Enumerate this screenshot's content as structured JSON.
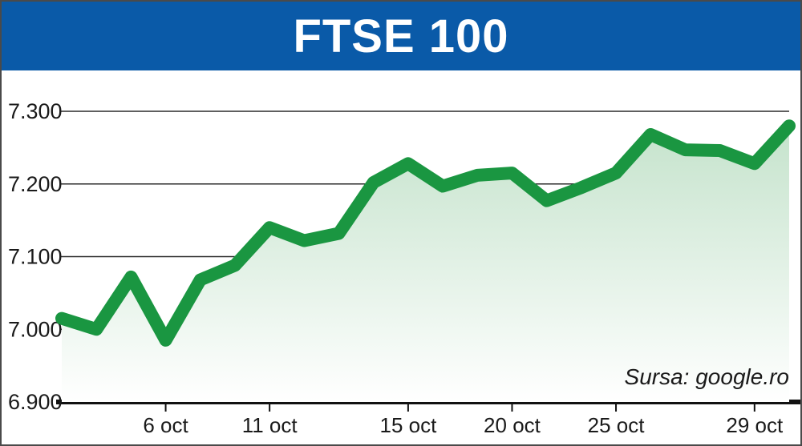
{
  "header": {
    "title": "FTSE 100"
  },
  "chart_data": {
    "type": "area",
    "title": "FTSE 100",
    "xlabel": "",
    "ylabel": "",
    "ylim": [
      6900,
      7300
    ],
    "yticks": [
      {
        "value": 6900,
        "label": "6.900"
      },
      {
        "value": 7000,
        "label": "7.000"
      },
      {
        "value": 7100,
        "label": "7.100"
      },
      {
        "value": 7200,
        "label": "7.200"
      },
      {
        "value": 7300,
        "label": "7.300"
      }
    ],
    "xticks": [
      {
        "index": 3,
        "label": "6 oct"
      },
      {
        "index": 6,
        "label": "11 oct"
      },
      {
        "index": 10,
        "label": "15 oct"
      },
      {
        "index": 13,
        "label": "20 oct"
      },
      {
        "index": 16,
        "label": "25 oct"
      },
      {
        "index": 20,
        "label": "29 oct"
      }
    ],
    "series": [
      {
        "values": [
          7015,
          7000,
          7072,
          6985,
          7068,
          7088,
          7140,
          7122,
          7132,
          7202,
          7228,
          7197,
          7212,
          7215,
          7177,
          7195,
          7215,
          7268,
          7247,
          7246,
          7228,
          7280
        ]
      }
    ],
    "grid": true,
    "source": "Sursa: google.ro",
    "colors": {
      "line": "#1a9641",
      "fill_top": "#c5e3cc",
      "fill_bottom": "#ffffff",
      "header": "#0a5aa8",
      "grid": "#2a2a2a"
    }
  }
}
